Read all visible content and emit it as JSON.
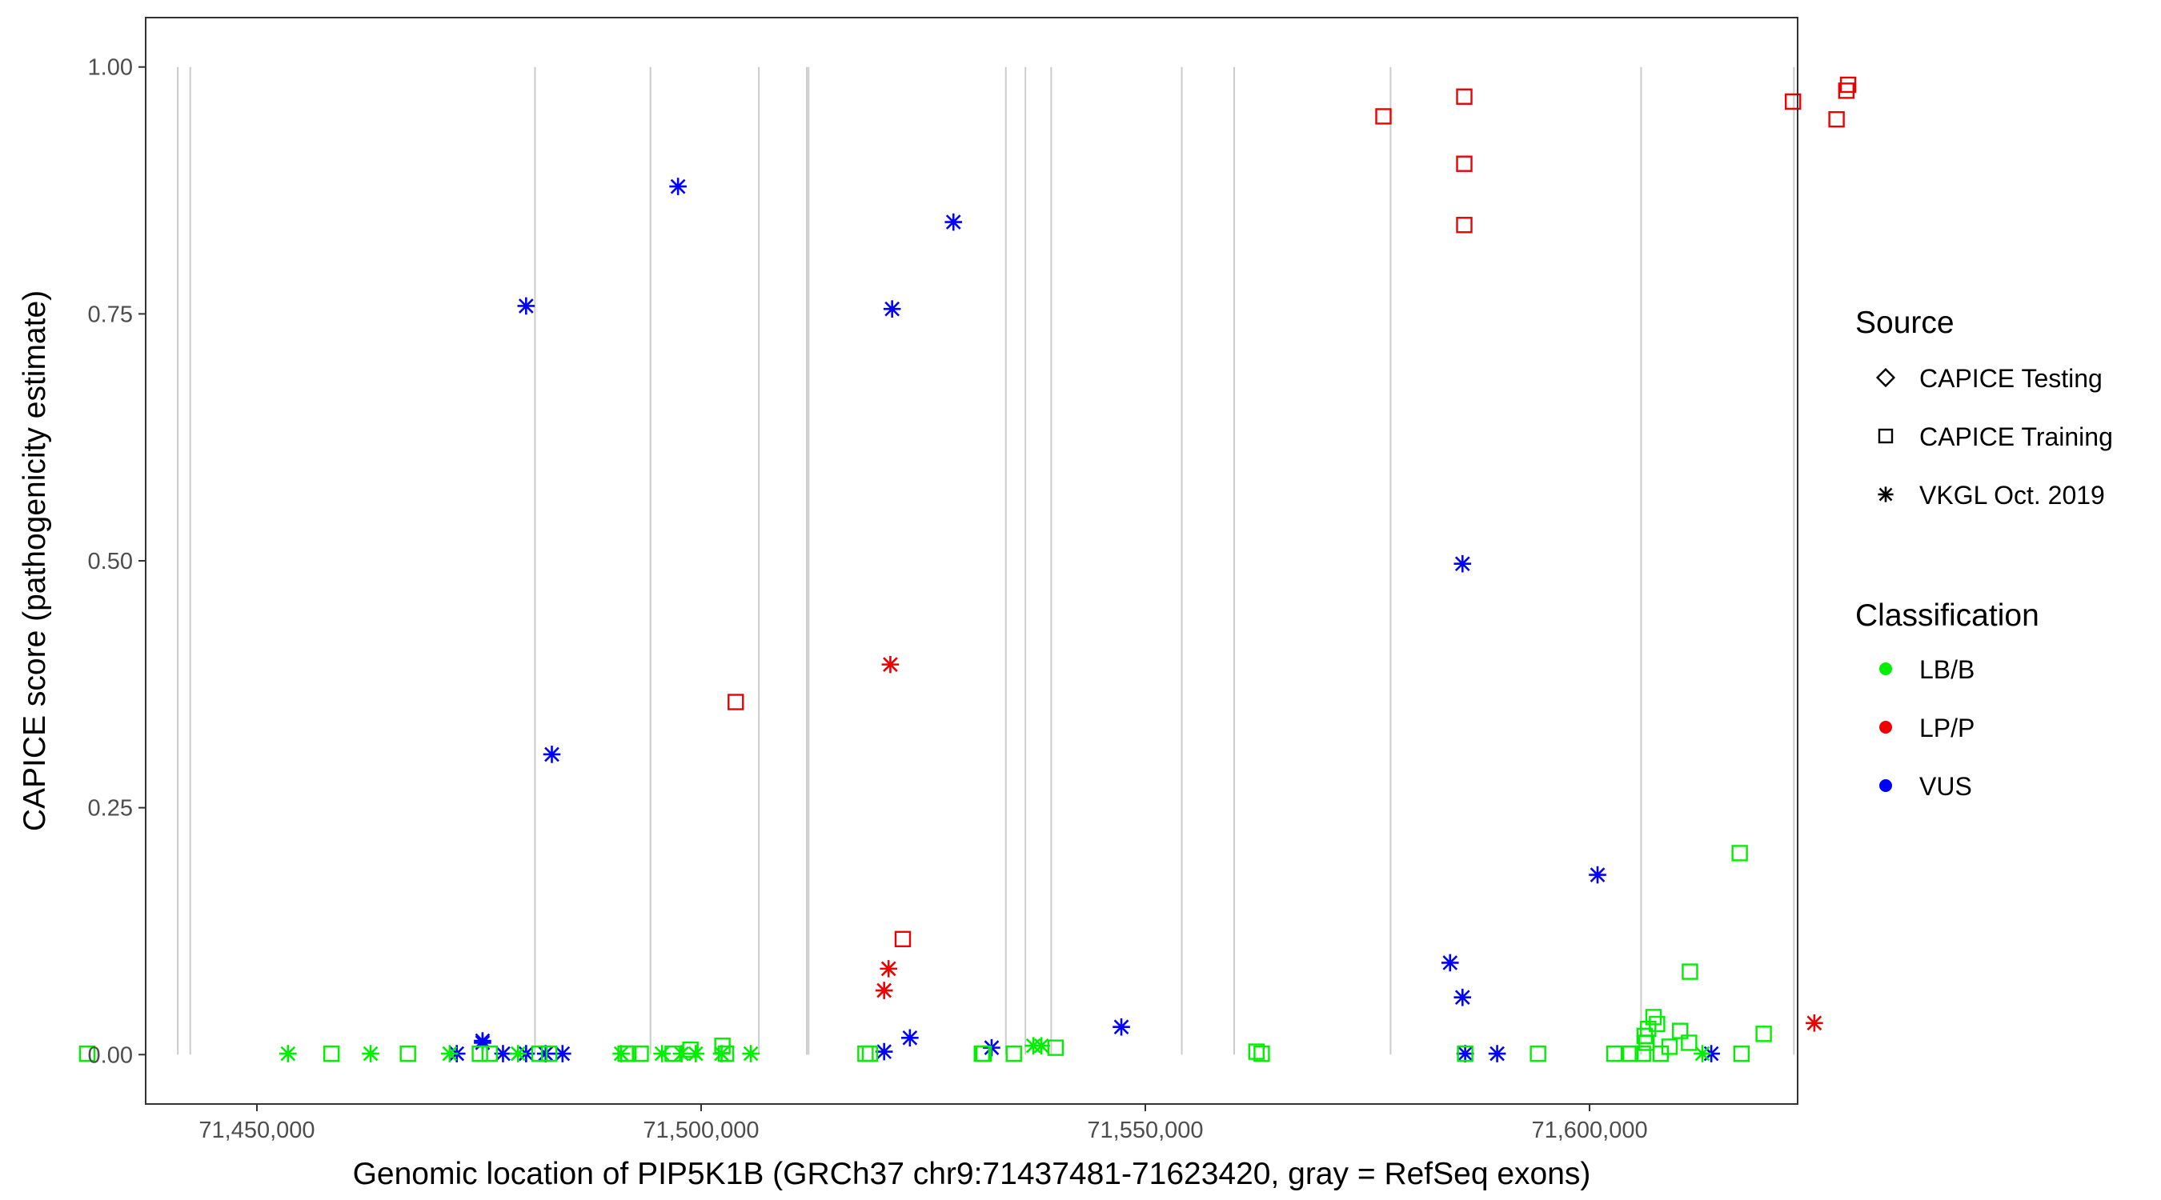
{
  "chart_data": {
    "type": "scatter",
    "title": "",
    "xlabel": "Genomic location of PIP5K1B (GRCh37 chr9:71437481-71623420, gray = RefSeq exons)",
    "ylabel": "CAPICE score (pathogenicity estimate)",
    "xlim": [
      71437481,
      71623420
    ],
    "ylim": [
      -0.05,
      1.05
    ],
    "x_ticks": [
      71450000,
      71500000,
      71550000,
      71600000
    ],
    "x_tick_labels": [
      "71,450,000",
      "71,500,000",
      "71,550,000",
      "71,600,000"
    ],
    "y_ticks": [
      0,
      0.25,
      0.5,
      0.75,
      1.0
    ],
    "y_tick_labels": [
      "0.00",
      "0.25",
      "0.50",
      "0.75",
      "1.00"
    ],
    "grid": false,
    "exon_lines": [
      71441100,
      71442500,
      71481300,
      71494300,
      71506500,
      71511900,
      71512100,
      71534300,
      71536500,
      71539400,
      71554100,
      71560000,
      71577600,
      71605800,
      71623000
    ],
    "legend": {
      "placement": "right",
      "source_title": "Source",
      "source_items": [
        {
          "label": "CAPICE Testing",
          "shape": "diamond"
        },
        {
          "label": "CAPICE Training",
          "shape": "square"
        },
        {
          "label": "VKGL Oct. 2019",
          "shape": "star"
        }
      ],
      "class_title": "Classification",
      "class_items": [
        {
          "label": "LB/B",
          "color": "#00ee00"
        },
        {
          "label": "LP/P",
          "color": "#ee0000"
        },
        {
          "label": "VUS",
          "color": "#0000ff"
        }
      ]
    },
    "series": [
      {
        "source": "CAPICE Training",
        "classification": "LP/P",
        "x": [
          71576800,
          71585900,
          71585900,
          71585900,
          71622900,
          71627800,
          71628900,
          71629100,
          71503900,
          71522700
        ],
        "y": [
          0.95,
          0.97,
          0.902,
          0.84,
          0.965,
          0.947,
          0.976,
          0.982,
          0.357,
          0.117
        ]
      },
      {
        "source": "VKGL Oct. 2019",
        "classification": "LP/P",
        "x": [
          71521300,
          71521100,
          71520600,
          71625300
        ],
        "y": [
          0.395,
          0.087,
          0.065,
          0.032
        ]
      },
      {
        "source": "VKGL Oct. 2019",
        "classification": "VUS",
        "x": [
          71497400,
          71528400,
          71521500,
          71480300,
          71483200,
          71585700,
          71600900,
          71584300,
          71585700,
          71547300,
          71475400,
          71472500,
          71475400,
          71477700,
          71480300,
          71482500,
          71484400,
          71520600,
          71523500,
          71532700,
          71586000,
          71589600,
          71613700
        ],
        "y": [
          0.879,
          0.843,
          0.755,
          0.758,
          0.304,
          0.497,
          0.182,
          0.093,
          0.058,
          0.028,
          0.014,
          0.001,
          0.012,
          0.001,
          0.001,
          0.001,
          0.001,
          0.003,
          0.017,
          0.007,
          0.001,
          0.001,
          0.001
        ]
      },
      {
        "source": "CAPICE Training",
        "classification": "LB/B",
        "x": [
          71430900,
          71458400,
          71467000,
          71475100,
          71476200,
          71481800,
          71482900,
          71491500,
          71491800,
          71493200,
          71496800,
          71498800,
          71502400,
          71502800,
          71518500,
          71519000,
          71531600,
          71531800,
          71535200,
          71539900,
          71562500,
          71563100,
          71586000,
          71594200,
          71602800,
          71604600,
          71606000,
          71606200,
          71606400,
          71606600,
          71607200,
          71607600,
          71608000,
          71609000,
          71610200,
          71611200,
          71611300,
          71616900,
          71617100,
          71619600
        ],
        "y": [
          0.001,
          0.001,
          0.001,
          0.001,
          0.001,
          0.001,
          0.001,
          0.001,
          0.001,
          0.001,
          0.001,
          0.005,
          0.009,
          0.001,
          0.001,
          0.001,
          0.001,
          0.001,
          0.001,
          0.007,
          0.003,
          0.001,
          0.001,
          0.001,
          0.001,
          0.001,
          0.001,
          0.019,
          0.012,
          0.026,
          0.038,
          0.031,
          0.001,
          0.008,
          0.024,
          0.012,
          0.084,
          0.204,
          0.001,
          0.021
        ]
      },
      {
        "source": "VKGL Oct. 2019",
        "classification": "LB/B",
        "x": [
          71453500,
          71462800,
          71471700,
          71479400,
          71491000,
          71495600,
          71497800,
          71499400,
          71502300,
          71505600,
          71537400,
          71538300,
          71612700
        ],
        "y": [
          0.001,
          0.001,
          0.001,
          0.001,
          0.001,
          0.001,
          0.001,
          0.001,
          0.001,
          0.001,
          0.009,
          0.009,
          0.001
        ]
      }
    ]
  }
}
